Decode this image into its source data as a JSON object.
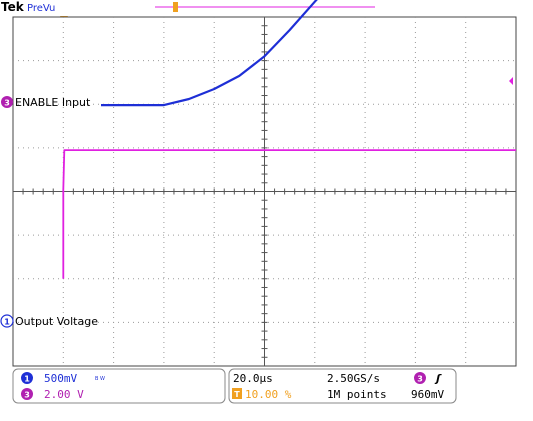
{
  "header": {
    "brand": "Tek",
    "mode": "PreVu"
  },
  "channels": {
    "ch1": {
      "number": "1",
      "label": "Output Voltage",
      "scale": "500mV",
      "bw_symbol": "B W",
      "color": "#1e2fd6"
    },
    "ch3": {
      "number": "3",
      "label": "ENABLE Input",
      "scale": "2.00 V",
      "color": "#e020e0"
    }
  },
  "trigger": {
    "marker": "T",
    "channel": "3",
    "slope_symbol": "ʃ",
    "level": "960mV",
    "position": "10.00 %",
    "color": "#f0a020"
  },
  "timebase": {
    "scale": "20.0µs",
    "sample_rate": "2.50GS/s",
    "record_length": "1M points"
  },
  "chart_data": {
    "type": "line",
    "x_divisions": 10,
    "y_divisions": 8,
    "x_per_div_us": 20,
    "trigger_x_div": 1.0,
    "series": [
      {
        "name": "ENABLE Input",
        "channel": "3",
        "volts_per_div": 2.0,
        "ground_div": 6.0,
        "x_div": [
          1.0,
          1.0,
          1.02,
          10.0
        ],
        "y_div": [
          0.0,
          2.05,
          2.95,
          2.95
        ]
      },
      {
        "name": "Output Voltage",
        "channel": "1",
        "volts_per_div": 0.5,
        "ground_div": 2.0,
        "x_div": [
          1.75,
          2.5,
          3.0,
          3.5,
          4.0,
          4.5,
          5.0,
          5.5,
          6.0,
          6.5,
          6.6,
          7.0,
          8.0,
          9.0,
          10.0
        ],
        "y_div": [
          -0.02,
          -0.02,
          -0.02,
          0.12,
          0.35,
          0.65,
          1.1,
          1.7,
          2.35,
          2.98,
          3.4,
          3.45,
          3.43,
          3.42,
          3.4
        ]
      }
    ]
  }
}
